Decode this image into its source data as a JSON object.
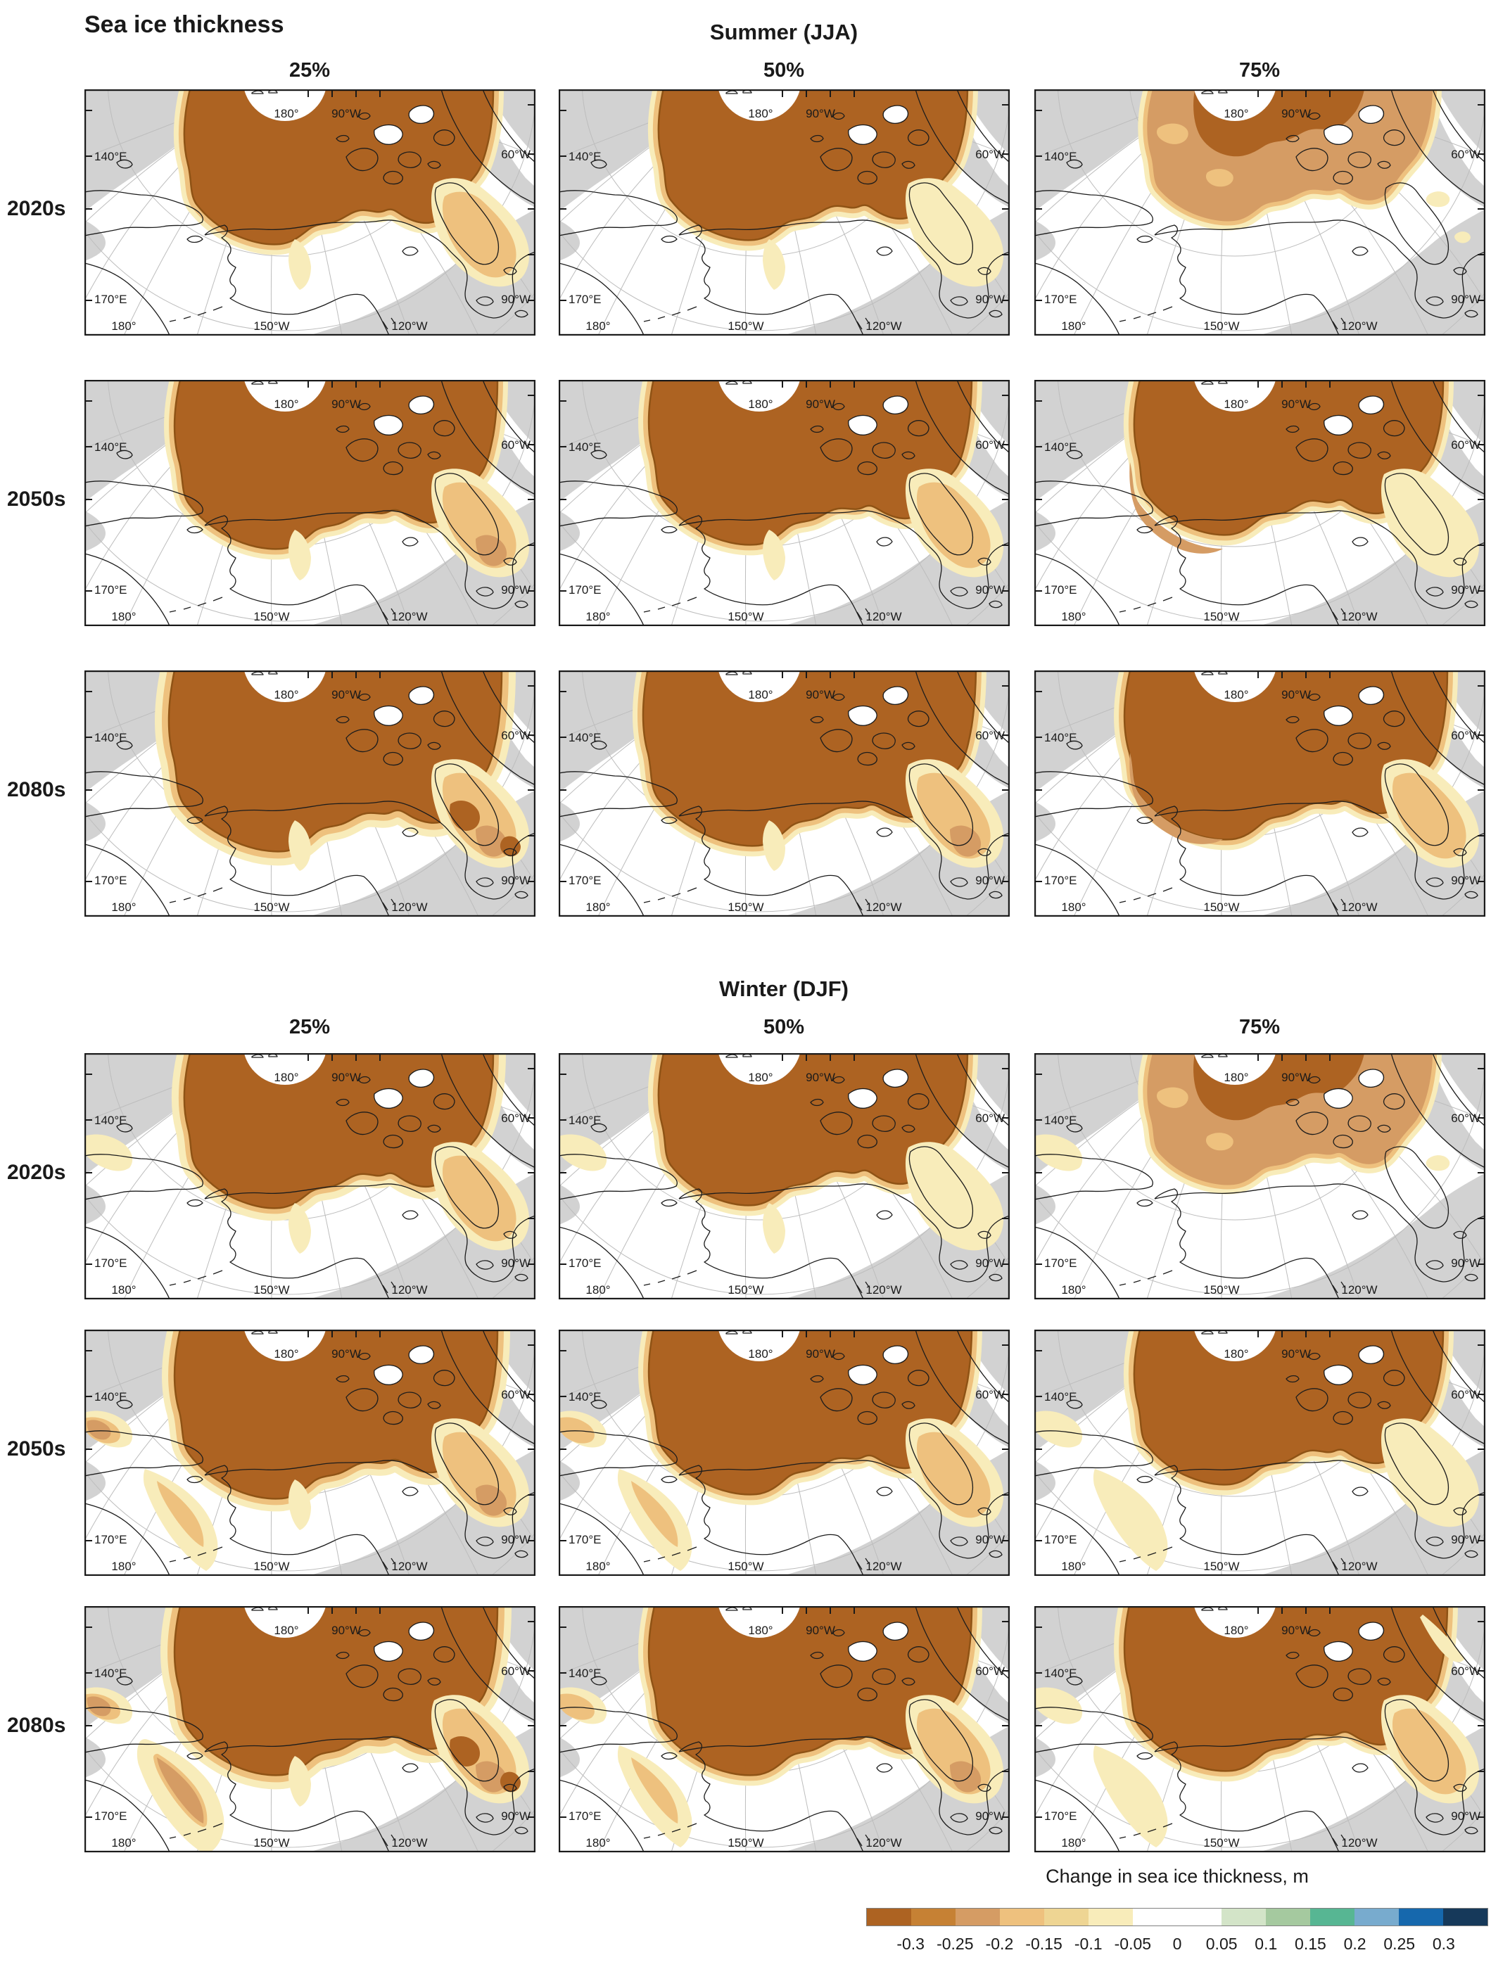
{
  "page_title": "Sea ice thickness",
  "sections": [
    {
      "id": "summer",
      "season_label": "Summer (JJA)",
      "column_labels": [
        "25%",
        "50%",
        "75%"
      ],
      "row_labels": [
        "2020s",
        "2050s",
        "2080s"
      ]
    },
    {
      "id": "winter",
      "season_label": "Winter (DJF)",
      "column_labels": [
        "25%",
        "50%",
        "75%"
      ],
      "row_labels": [
        "2020s",
        "2050s",
        "2080s"
      ]
    }
  ],
  "map_labels": {
    "top_left": "180°",
    "top_right": "90°W",
    "left_upper": "140°E",
    "left_lower": "170°E",
    "right_upper": "60°W",
    "right_lower": "90°W",
    "bottom_left": "180°",
    "bottom_center": "150°W",
    "bottom_right": "120°W"
  },
  "colorbar": {
    "title": "Change in sea ice thickness, m",
    "units": "m",
    "tick_labels": [
      "-0.3",
      "-0.25",
      "-0.2",
      "-0.15",
      "-0.1",
      "-0.05",
      "0",
      "0.05",
      "0.1",
      "0.15",
      "0.2",
      "0.25",
      "0.3"
    ],
    "segment_colors": [
      "#ad6322",
      "#c68134",
      "#d59c64",
      "#eec17e",
      "#eed593",
      "#f8ecba",
      "#ffffff",
      "#d3e4c8",
      "#a5c99f",
      "#57b693",
      "#78abce",
      "#1668ad",
      "#16395a"
    ],
    "white_segment_spans_two_slots": true
  },
  "chart_data": {
    "type": "heatmap",
    "subtype": "multi-panel polar map grid",
    "title": "Sea ice thickness",
    "legend_title": "Change in sea ice thickness, m",
    "value_range": [
      -0.3,
      0.3
    ],
    "value_step": 0.05,
    "seasons": [
      "Summer (JJA)",
      "Winter (DJF)"
    ],
    "percentiles": [
      "25%",
      "50%",
      "75%"
    ],
    "decades": [
      "2020s",
      "2050s",
      "2080s"
    ],
    "color_scale": {
      "boundaries": [
        -0.3,
        -0.25,
        -0.2,
        -0.15,
        -0.1,
        -0.05,
        0,
        0.05,
        0.1,
        0.15,
        0.2,
        0.25,
        0.3
      ],
      "colors": [
        "#ad6322",
        "#c68134",
        "#d59c64",
        "#eec17e",
        "#eed593",
        "#f8ecba",
        "#ffffff",
        "#ffffff",
        "#d3e4c8",
        "#a5c99f",
        "#57b693",
        "#78abce",
        "#1668ad",
        "#16395a"
      ]
    },
    "panels": [
      {
        "season": "Summer (JJA)",
        "decade": "2020s",
        "percentile": "25%",
        "pattern": "solid strong thinning (≤ -0.3 m) over central Arctic cap; light thinning over Baffin Bay region"
      },
      {
        "season": "Summer (JJA)",
        "decade": "2020s",
        "percentile": "50%",
        "pattern": "solid strong thinning cap, slightly smaller; pale thinning southeast"
      },
      {
        "season": "Summer (JJA)",
        "decade": "2020s",
        "percentile": "75%",
        "pattern": "mottled moderate thinning cap with dark core; small pale patches southeast"
      },
      {
        "season": "Summer (JJA)",
        "decade": "2050s",
        "percentile": "25%",
        "pattern": "larger strong-thinning cap; moderate-to-strong thinning over Baffin Island region"
      },
      {
        "season": "Summer (JJA)",
        "decade": "2050s",
        "percentile": "50%",
        "pattern": "large strong-thinning cap; light thinning southeast"
      },
      {
        "season": "Summer (JJA)",
        "decade": "2050s",
        "percentile": "75%",
        "pattern": "strong-thinning cap with moderate band on lower flank; pale southeast patch"
      },
      {
        "season": "Summer (JJA)",
        "decade": "2080s",
        "percentile": "25%",
        "pattern": "largest strong-thinning cap; strong thinning over Baffin/Labrador region"
      },
      {
        "season": "Summer (JJA)",
        "decade": "2080s",
        "percentile": "50%",
        "pattern": "very large strong-thinning cap; moderate thinning southeast"
      },
      {
        "season": "Summer (JJA)",
        "decade": "2080s",
        "percentile": "75%",
        "pattern": "large cap with moderate-thinning lower-left band; tan southeast patch"
      },
      {
        "season": "Winter (DJF)",
        "decade": "2020s",
        "percentile": "25%",
        "pattern": "strong-thinning cap plus pale thinning in Bering Sea and along west Alaska coast; tan Baffin patch"
      },
      {
        "season": "Winter (DJF)",
        "decade": "2020s",
        "percentile": "50%",
        "pattern": "strong-thinning cap; smaller pale Bering/coastal patches; pale southeast"
      },
      {
        "season": "Winter (DJF)",
        "decade": "2020s",
        "percentile": "75%",
        "pattern": "mottled moderate cap with dark core; pale patch at left edge"
      },
      {
        "season": "Winter (DJF)",
        "decade": "2050s",
        "percentile": "25%",
        "pattern": "large cap; moderate thinning along Chukotka coast and Bering Strait wedge; strong southeast blob"
      },
      {
        "season": "Winter (DJF)",
        "decade": "2050s",
        "percentile": "50%",
        "pattern": "large cap; tan coastal and Bering wedge; tan southeast blob"
      },
      {
        "season": "Winter (DJF)",
        "decade": "2050s",
        "percentile": "75%",
        "pattern": "cap with pale Bering wedge and large pale southeast blob"
      },
      {
        "season": "Winter (DJF)",
        "decade": "2080s",
        "percentile": "25%",
        "pattern": "large cap; extensive moderate thinning over Chukotka/Bering region; strong Labrador blob"
      },
      {
        "season": "Winter (DJF)",
        "decade": "2080s",
        "percentile": "50%",
        "pattern": "large cap; tan Bering wedge with moderate core; mottled strong southeast blob"
      },
      {
        "season": "Winter (DJF)",
        "decade": "2080s",
        "percentile": "75%",
        "pattern": "cap with pale Bering wedge; tan southeast blob; pale northeast streak"
      }
    ]
  }
}
